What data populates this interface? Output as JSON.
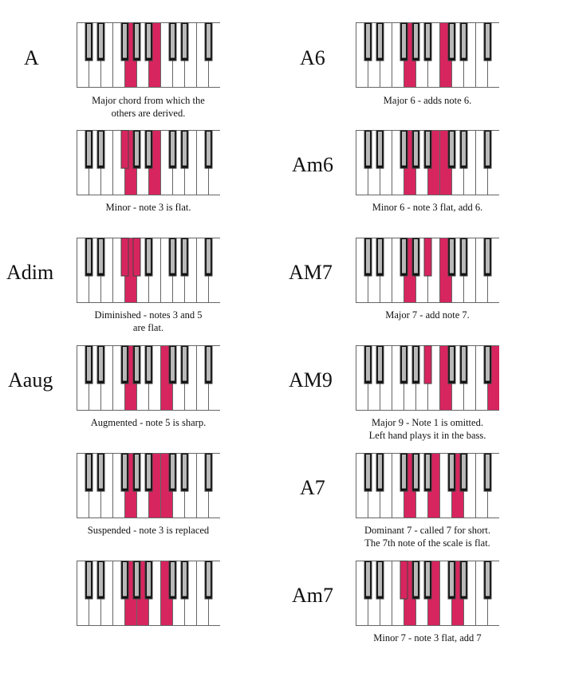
{
  "header": {
    "faded_text": ""
  },
  "colors": {
    "highlight": "#d7255f",
    "black_key": "#111111",
    "white_key": "#ffffff",
    "frame": "#666666"
  },
  "chords": [
    {
      "id": "A",
      "name": "A",
      "caption": [
        "Major chord from which the",
        "others are derived."
      ],
      "highlight_white": [
        4,
        6
      ],
      "highlight_black": []
    },
    {
      "id": "A6",
      "name": "A6",
      "caption": [
        "Major 6 - adds note 6."
      ],
      "highlight_white": [
        4,
        7
      ],
      "highlight_black": []
    },
    {
      "id": "Am",
      "name": "",
      "caption": [
        "Minor - note 3 is flat."
      ],
      "highlight_white": [
        4,
        6
      ],
      "highlight_black": [
        2
      ]
    },
    {
      "id": "Am6",
      "name": "Am6",
      "caption": [
        "Minor 6 - note 3 flat, add 6."
      ],
      "highlight_white": [
        4,
        6,
        7
      ],
      "highlight_black": []
    },
    {
      "id": "Adim",
      "name": "Adim",
      "caption": [
        "Diminished - notes 3 and 5",
        "are flat."
      ],
      "highlight_white": [
        4
      ],
      "highlight_black": [
        2,
        3
      ]
    },
    {
      "id": "AM7",
      "name": "AM7",
      "caption": [
        "Major 7 - add note 7."
      ],
      "highlight_white": [
        4,
        7
      ],
      "highlight_black": [
        4
      ]
    },
    {
      "id": "Aaug",
      "name": "Aaug",
      "caption": [
        "Augmented - note 5 is sharp."
      ],
      "highlight_white": [
        4,
        7
      ],
      "highlight_black": []
    },
    {
      "id": "AM9",
      "name": "AM9",
      "caption": [
        "Major 9 - Note 1 is omitted.",
        "Left hand plays it in the bass."
      ],
      "highlight_white": [
        7,
        11
      ],
      "highlight_black": [
        4
      ]
    },
    {
      "id": "Asus",
      "name": "",
      "caption": [
        "Suspended - note 3 is replaced"
      ],
      "highlight_white": [
        4,
        6,
        7
      ],
      "highlight_black": []
    },
    {
      "id": "A7",
      "name": "A7",
      "caption": [
        "Dominant 7 - called 7 for short.",
        "The 7th note of the scale is flat."
      ],
      "highlight_white": [
        4,
        6,
        8
      ],
      "highlight_black": []
    },
    {
      "id": "Asus4",
      "name": "",
      "caption": [
        ""
      ],
      "highlight_white": [
        4,
        5,
        7
      ],
      "highlight_black": []
    },
    {
      "id": "Am7",
      "name": "Am7",
      "caption": [
        "Minor 7 - note 3 flat, add 7"
      ],
      "highlight_white": [
        4,
        6,
        8
      ],
      "highlight_black": [
        2
      ]
    }
  ]
}
